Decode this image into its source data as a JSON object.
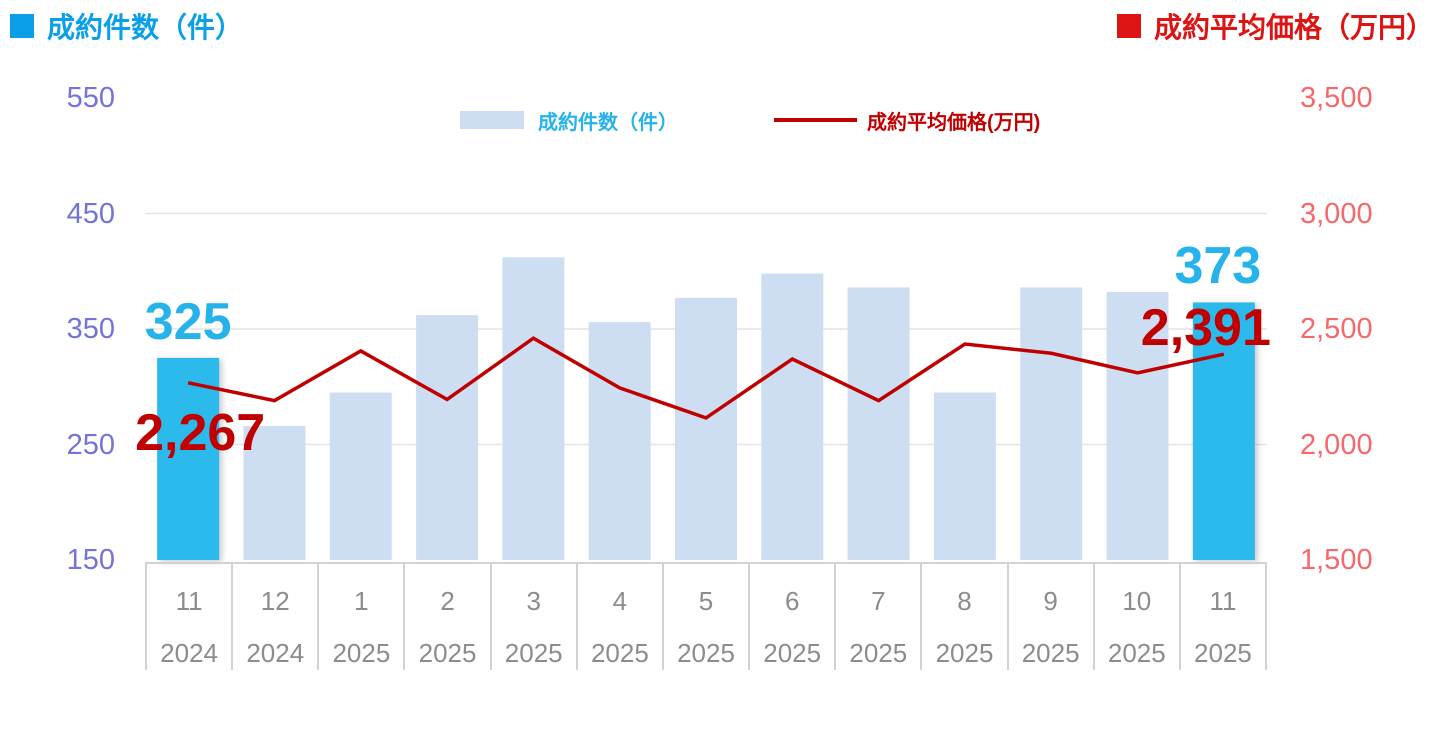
{
  "header": {
    "left_title": "成約件数（件）",
    "right_title": "成約平均価格（万円）"
  },
  "legend": {
    "bar_label": "成約件数（件）",
    "line_label": "成約平均価格(万円)"
  },
  "chart_data": {
    "type": "combo",
    "title": "成約件数（件）/ 成約平均価格（万円）",
    "legend_position": "top-center",
    "grid": true,
    "categories": [
      {
        "month": "11",
        "year": "2024"
      },
      {
        "month": "12",
        "year": "2024"
      },
      {
        "month": "1",
        "year": "2025"
      },
      {
        "month": "2",
        "year": "2025"
      },
      {
        "month": "3",
        "year": "2025"
      },
      {
        "month": "4",
        "year": "2025"
      },
      {
        "month": "5",
        "year": "2025"
      },
      {
        "month": "6",
        "year": "2025"
      },
      {
        "month": "7",
        "year": "2025"
      },
      {
        "month": "8",
        "year": "2025"
      },
      {
        "month": "9",
        "year": "2025"
      },
      {
        "month": "10",
        "year": "2025"
      },
      {
        "month": "11",
        "year": "2025"
      }
    ],
    "series": [
      {
        "name": "成約件数（件）",
        "type": "bar",
        "axis": "left",
        "values": [
          325,
          266,
          295,
          362,
          412,
          356,
          377,
          398,
          386,
          295,
          386,
          382,
          373
        ]
      },
      {
        "name": "成約平均価格(万円)",
        "type": "line",
        "axis": "right",
        "values": [
          2267,
          2190,
          2405,
          2195,
          2460,
          2245,
          2115,
          2370,
          2190,
          2435,
          2395,
          2310,
          2391
        ]
      }
    ],
    "left_axis": {
      "min": 150,
      "max": 550,
      "step": 100,
      "ticks": [
        "550",
        "450",
        "350",
        "250",
        "150"
      ],
      "color": "#7373d9"
    },
    "right_axis": {
      "min": 1500,
      "max": 3500,
      "step": 500,
      "ticks": [
        "3,500",
        "3,000",
        "2,500",
        "2,000",
        "1,500"
      ],
      "color": "#f5696c"
    },
    "highlight_indices": [
      0,
      12
    ],
    "callouts": [
      {
        "text": "325",
        "series": "bar",
        "index": 0,
        "color": "#25b3ea"
      },
      {
        "text": "2,267",
        "series": "line",
        "index": 0,
        "color": "#c00000"
      },
      {
        "text": "373",
        "series": "bar",
        "index": 12,
        "color": "#25b3ea"
      },
      {
        "text": "2,391",
        "series": "line",
        "index": 12,
        "color": "#c00000"
      }
    ]
  },
  "colors": {
    "bar_default": "#cedef2",
    "bar_highlight": "#2cb9ec",
    "line": "#c00000",
    "accent_cyan": "#25b3ea",
    "left_title": "#0a9fe8",
    "right_title": "#dc1414",
    "xaxis_label": "#8c8c8c",
    "gridline": "#e4e4e4",
    "axis_table_border": "#d2d2d2"
  }
}
